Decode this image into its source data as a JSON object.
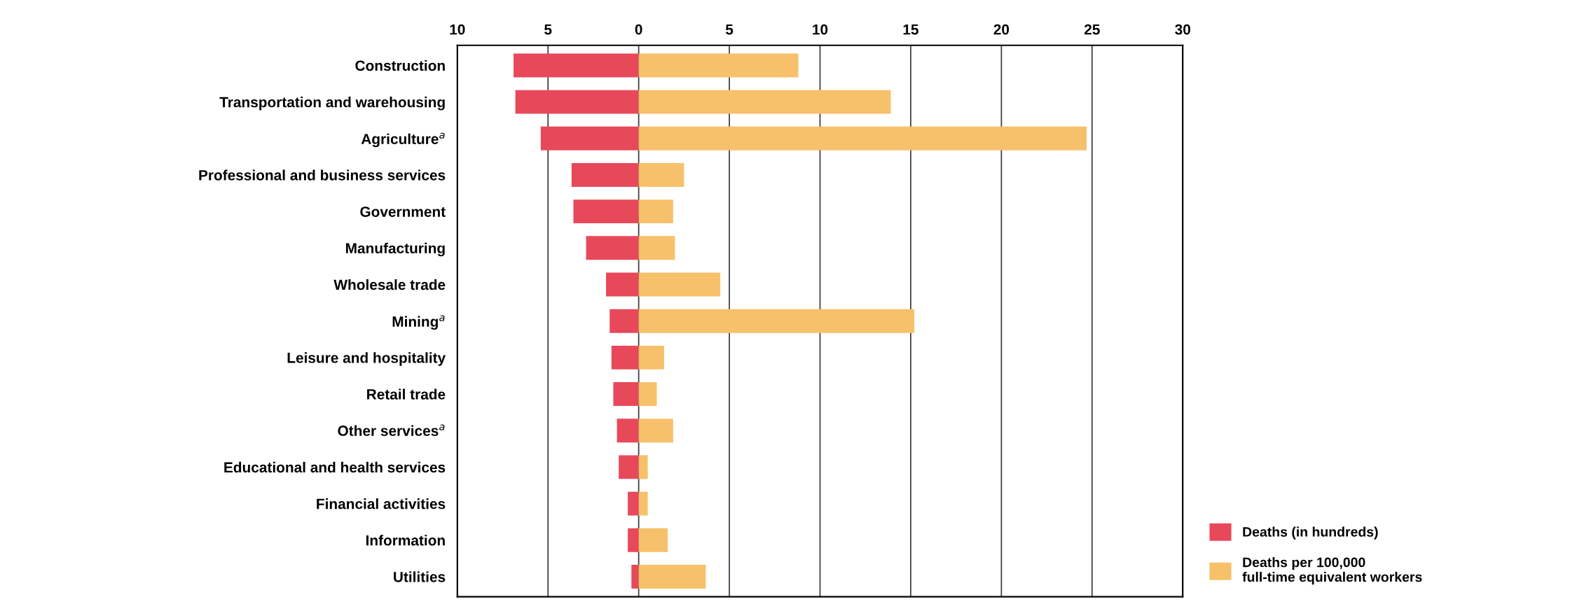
{
  "chart_data": {
    "type": "bar",
    "orientation": "horizontal",
    "stacked": true,
    "categories": [
      "Construction",
      "Transportation and warehousing",
      "Agriculture$^{a}$",
      "Professional and business services",
      "Government",
      "Manufacturing",
      "Wholesale trade",
      "Mining$^{a}$",
      "Leisure and hospitality",
      "Retail trade",
      "Other services$^{a}$",
      "Educational and health services",
      "Financial activities",
      "Information",
      "Utilities"
    ],
    "series": [
      {
        "name": "Deaths (in hundreds)",
        "color": "#e8495a",
        "values": [
          -6.9,
          -6.8,
          -5.4,
          -3.7,
          -3.6,
          -2.9,
          -1.8,
          -1.6,
          -1.5,
          -1.4,
          -1.2,
          -1.1,
          -0.6,
          -0.6,
          -0.4
        ]
      },
      {
        "name": "Deaths per 100,000\nfull-time equivalent workers",
        "color": "#f7c06a",
        "values": [
          8.8,
          13.9,
          24.7,
          2.5,
          1.9,
          2.0,
          4.5,
          15.2,
          1.4,
          1.0,
          1.9,
          0.5,
          0.5,
          1.6,
          3.7
        ]
      }
    ],
    "xlim": [
      -10,
      30
    ],
    "xticks": [
      {
        "value": -10,
        "label": "10"
      },
      {
        "value": -5,
        "label": "5"
      },
      0,
      5,
      10,
      15,
      20,
      25,
      30
    ],
    "grid": "x",
    "legend": "bottom right"
  }
}
